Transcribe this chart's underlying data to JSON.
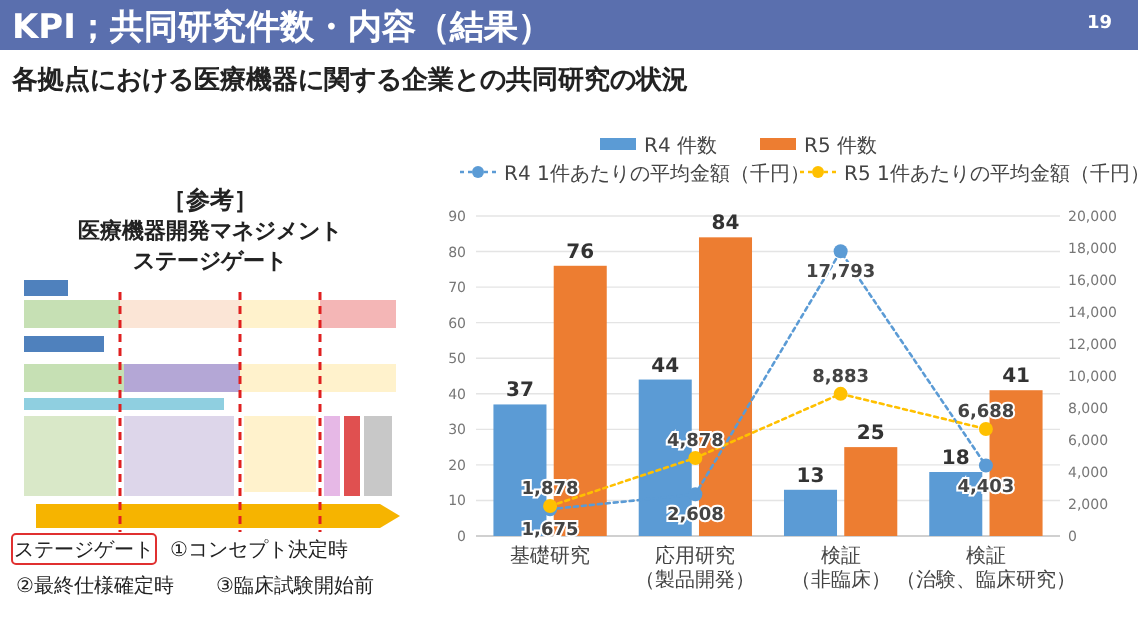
{
  "chart_data": {
    "type": "bar",
    "title": "KPI；共同研究件数・内容（結果）",
    "subtitle": "各拠点における医療機器に関する企業との共同研究の状況",
    "annotations": [
      "19",
      "［参考］",
      "医療機器開発マネジメント",
      "ステージゲート",
      "ステージゲート",
      "①コンセプト決定時",
      "②最終仕様確定時",
      "③臨床試験開始前"
    ],
    "categories": [
      "基礎研究",
      "応用研究（製品開発）",
      "検証（非臨床）",
      "検証（治験、臨床研究）"
    ],
    "series": [
      {
        "name": "R4 件数",
        "color": "#5b9bd5",
        "values": [
          37,
          44,
          13,
          18
        ],
        "value_labels": [
          "37",
          "44",
          "13",
          "18"
        ]
      },
      {
        "name": "R5 件数",
        "color": "#ed7d31",
        "values": [
          76,
          84,
          25,
          41
        ],
        "value_labels": [
          "76",
          "84",
          "25",
          "41"
        ]
      },
      {
        "name": "R4 1件あたりの平均金額（千円）",
        "type": "line",
        "axis": "y2",
        "color": "#5b9bd5",
        "line_style": "dotted",
        "marker": "circle",
        "values": [
          1675,
          2608,
          17793,
          4403
        ],
        "value_labels": [
          "1,675",
          "2,608",
          "17,793",
          "4,403"
        ]
      },
      {
        "name": "R5 1件あたりの平均金額（千円）",
        "type": "line",
        "axis": "y2",
        "color": "#ffc000",
        "line_style": "dotted",
        "marker": "circle",
        "values": [
          1878,
          4878,
          8883,
          6688
        ],
        "value_labels": [
          "1,878",
          "4,878",
          "8,883",
          "6,688"
        ]
      }
    ],
    "ylim": [
      0,
      90
    ],
    "yticks": [
      0,
      10,
      20,
      30,
      40,
      50,
      60,
      70,
      80,
      90
    ],
    "y2lim": [
      0,
      20000
    ],
    "y2ticks": [
      {
        "value": 0,
        "label": "0"
      },
      {
        "value": 2000,
        "label": "2,000"
      },
      {
        "value": 4000,
        "label": "4,000"
      },
      {
        "value": 6000,
        "label": "6,000"
      },
      {
        "value": 8000,
        "label": "8,000"
      },
      {
        "value": 10000,
        "label": "10,000"
      },
      {
        "value": 12000,
        "label": "12,000"
      },
      {
        "value": 14000,
        "label": "14,000"
      },
      {
        "value": 16000,
        "label": "16,000"
      },
      {
        "value": 18000,
        "label": "18,000"
      },
      {
        "value": 20000,
        "label": "20,000"
      }
    ],
    "grid": "y",
    "legend": "top"
  }
}
